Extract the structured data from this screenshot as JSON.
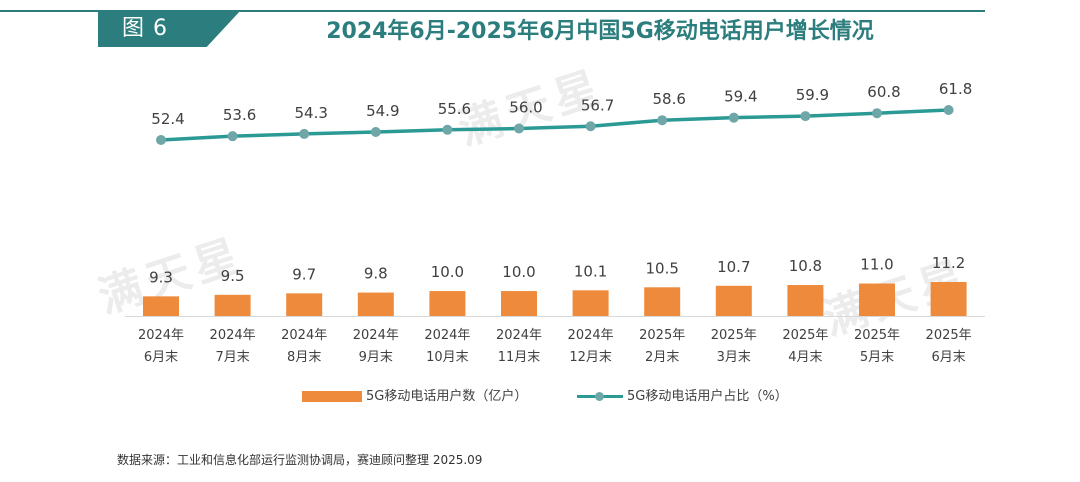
{
  "header": {
    "fig_label": "图 6",
    "title": "2024年6月-2025年6月中国5G移动电话用户增长情况"
  },
  "watermark": "满天星",
  "colors": {
    "accent": "#2b7e7d",
    "bar": "#ee8a3c",
    "line": "#2b9a95",
    "marker": "#6fa6a7"
  },
  "chart_data": {
    "type": "bar+line",
    "categories": [
      [
        "2024年",
        "6月末"
      ],
      [
        "2024年",
        "7月末"
      ],
      [
        "2024年",
        "8月末"
      ],
      [
        "2024年",
        "9月末"
      ],
      [
        "2024年",
        "10月末"
      ],
      [
        "2024年",
        "11月末"
      ],
      [
        "2024年",
        "12月末"
      ],
      [
        "2025年",
        "2月末"
      ],
      [
        "2025年",
        "3月末"
      ],
      [
        "2025年",
        "4月末"
      ],
      [
        "2025年",
        "5月末"
      ],
      [
        "2025年",
        "6月末"
      ]
    ],
    "series": [
      {
        "name": "5G移动电话用户数（亿户）",
        "type": "bar",
        "values": [
          9.3,
          9.5,
          9.7,
          9.8,
          10.0,
          10.0,
          10.1,
          10.5,
          10.7,
          10.8,
          11.0,
          11.2
        ],
        "labels": [
          "9.3",
          "9.5",
          "9.7",
          "9.8",
          "10.0",
          "10.0",
          "10.1",
          "10.5",
          "10.7",
          "10.8",
          "11.0",
          "11.2"
        ]
      },
      {
        "name": "5G移动电话用户占比（%）",
        "type": "line",
        "values": [
          52.4,
          53.6,
          54.3,
          54.9,
          55.6,
          56.0,
          56.7,
          58.6,
          59.4,
          59.9,
          60.8,
          61.8
        ],
        "labels": [
          "52.4",
          "53.6",
          "54.3",
          "54.9",
          "55.6",
          "56.0",
          "56.7",
          "58.6",
          "59.4",
          "59.9",
          "60.8",
          "61.8"
        ]
      }
    ],
    "legend": "bottom"
  },
  "source": "数据来源：工业和信息化部运行监测协调局，赛迪顾问整理 2025.09"
}
